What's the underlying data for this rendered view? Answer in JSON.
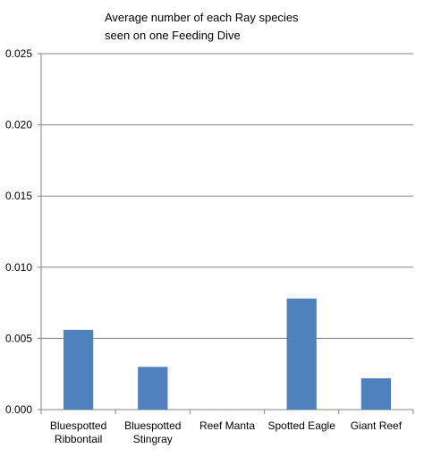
{
  "chart_data": {
    "type": "bar",
    "title_lines": [
      "Average number of  each Ray species",
      "seen on one Feeding Dive"
    ],
    "categories": [
      [
        "Bluespotted",
        "Ribbontail"
      ],
      [
        "Bluespotted",
        "Stingray"
      ],
      [
        "Reef Manta"
      ],
      [
        "Spotted Eagle"
      ],
      [
        "Giant Reef"
      ]
    ],
    "values": [
      0.0056,
      0.003,
      0.0,
      0.0078,
      0.0022
    ],
    "ylim": [
      0,
      0.025
    ],
    "yticks": [
      "0.000",
      "0.005",
      "0.010",
      "0.015",
      "0.020",
      "0.025"
    ],
    "xlabel": "",
    "ylabel": "",
    "grid": true,
    "legend": "none",
    "bar_color": "#4F81BD",
    "axis_color": "#868686",
    "grid_color": "#868686"
  }
}
